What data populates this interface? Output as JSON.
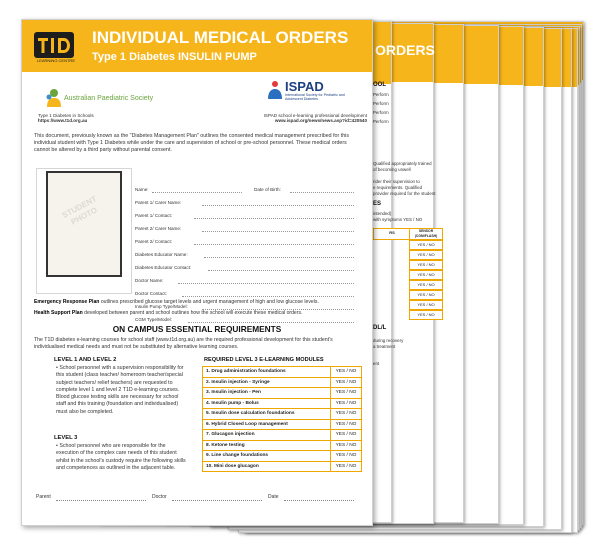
{
  "colors": {
    "accent": "#f6b51a",
    "accent_dark": "#f0a800",
    "ispad": "#1b3f80",
    "aps": "#6aa43c"
  },
  "header": {
    "logo_text": "T1D",
    "logo_subtext": "LEARNING CENTRE",
    "title": "INDIVIDUAL MEDICAL ORDERS",
    "subtitle": "Type 1 Diabetes INSULIN PUMP"
  },
  "partners": {
    "aps_name": "Australian Paediatric Society",
    "aps_caption": "Type 1 Diabetes in Schools",
    "aps_url": "https://www.t1d.org.au",
    "ispad_name": "ISPAD",
    "ispad_sub": "International Society for Pediatric and Adolescent Diabetes",
    "ispad_caption": "ISPAD school e-learning professional development",
    "ispad_url": "www.ispad.org/news/news.asp?id=420540"
  },
  "intro": "This document, previously known as the \"Diabetes Management Plan\" outlines the consented medical management prescribed for this individual student with Type 1 Diabetes while under the care and supervision of school or pre-school personnel. These medical orders cannot be altered by a third party without parental consent.",
  "photo_label": "STUDENT PHOTO",
  "fields": {
    "name": "Name:",
    "dob": "Date of Birth:",
    "parent1": "Parent 1/ Carer Name:",
    "parent1_contact": "Parent 1/ Contact:",
    "parent2": "Parent 2/ Carer Name:",
    "parent2_contact": "Parent 2/ Contact:",
    "educator": "Diabetes Educator Name:",
    "educator_contact": "Diabetes Educator Contact:",
    "doctor": "Doctor Name:",
    "doctor_contact": "Doctor Contact:",
    "pump": "Insulin Pump Type/Model:",
    "cgm": "CGM Type/Model:"
  },
  "plans": {
    "erp_label": "Emergency Response Plan",
    "erp_text": "outlines prescribed glucose target levels and urgent management of high and low glucose levels.",
    "hsp_label": "Health Support Plan",
    "hsp_text": "developed between parent and school outlines how the school will execute these medical orders."
  },
  "requirements": {
    "title": "ON CAMPUS ESSENTIAL REQUIREMENTS",
    "intro": "The T1D diabetes e-learning courses for school staff (www.t1d.org.au) are the required professional development for this student's individualised medical needs and must not be substituted by alternative learning courses.",
    "level12_title": "LEVEL 1 AND LEVEL 2",
    "level12_text": "• School personnel with a supervision responsibility for this student (class teacher/ homeroom teacher/special subject teachers/ relief teachers) are requested to complete level 1 and level 2 T1D e-learning courses. Blood glucose testing skills are necessary for school staff and this training (foundation and individualised) must also be completed.",
    "level3_title": "LEVEL 3",
    "level3_text": "• School personnel who are responsible for the execution of the complex care needs of this student whilst in the school's custody require the following skills and competences as outlined in the adjacent table.",
    "modules_title": "REQUIRED LEVEL 3 E-LEARNING MODULES",
    "modules": [
      {
        "name": "1. Drug administration foundations",
        "yn": "YES / NO"
      },
      {
        "name": "2. Insulin injection - Syringe",
        "yn": "YES / NO"
      },
      {
        "name": "3. Insulin injection - Pen",
        "yn": "YES / NO"
      },
      {
        "name": "4. Insulin pump - Bolus",
        "yn": "YES / NO"
      },
      {
        "name": "5. Insulin dose calculation foundations",
        "yn": "YES / NO"
      },
      {
        "name": "6. Hybrid Closed Loop management",
        "yn": "YES / NO"
      },
      {
        "name": "7. Glucagon injection",
        "yn": "YES / NO"
      },
      {
        "name": "8. Ketone testing",
        "yn": "YES / NO"
      },
      {
        "name": "9. Line change foundations",
        "yn": "YES / NO"
      },
      {
        "name": "10. Mini dose glucagon",
        "yn": "YES / NO"
      }
    ]
  },
  "signatures": {
    "parent": "Parent",
    "doctor": "Doctor",
    "date": "Date"
  },
  "back_page": {
    "title": "ORDERS",
    "section": "OOL",
    "perform": "Perform",
    "qualified": "Qualified appropriately trained",
    "risk": "of becoming unwell",
    "supervision": "rider their supervision to",
    "requirements": "e requirements. Qualified",
    "provider": "provider required for the student",
    "es": "ES",
    "intended": "intended)",
    "symptoms": "with symptoms YES / NO",
    "table_header_a": "RS",
    "table_header_b": "SENSOR (CGM/FLASH)",
    "yes_no": "YES / NO",
    "footer1": "DL/L",
    "footer2": "during recovery",
    "footer3": "a treatment",
    "footer4": "ent"
  }
}
